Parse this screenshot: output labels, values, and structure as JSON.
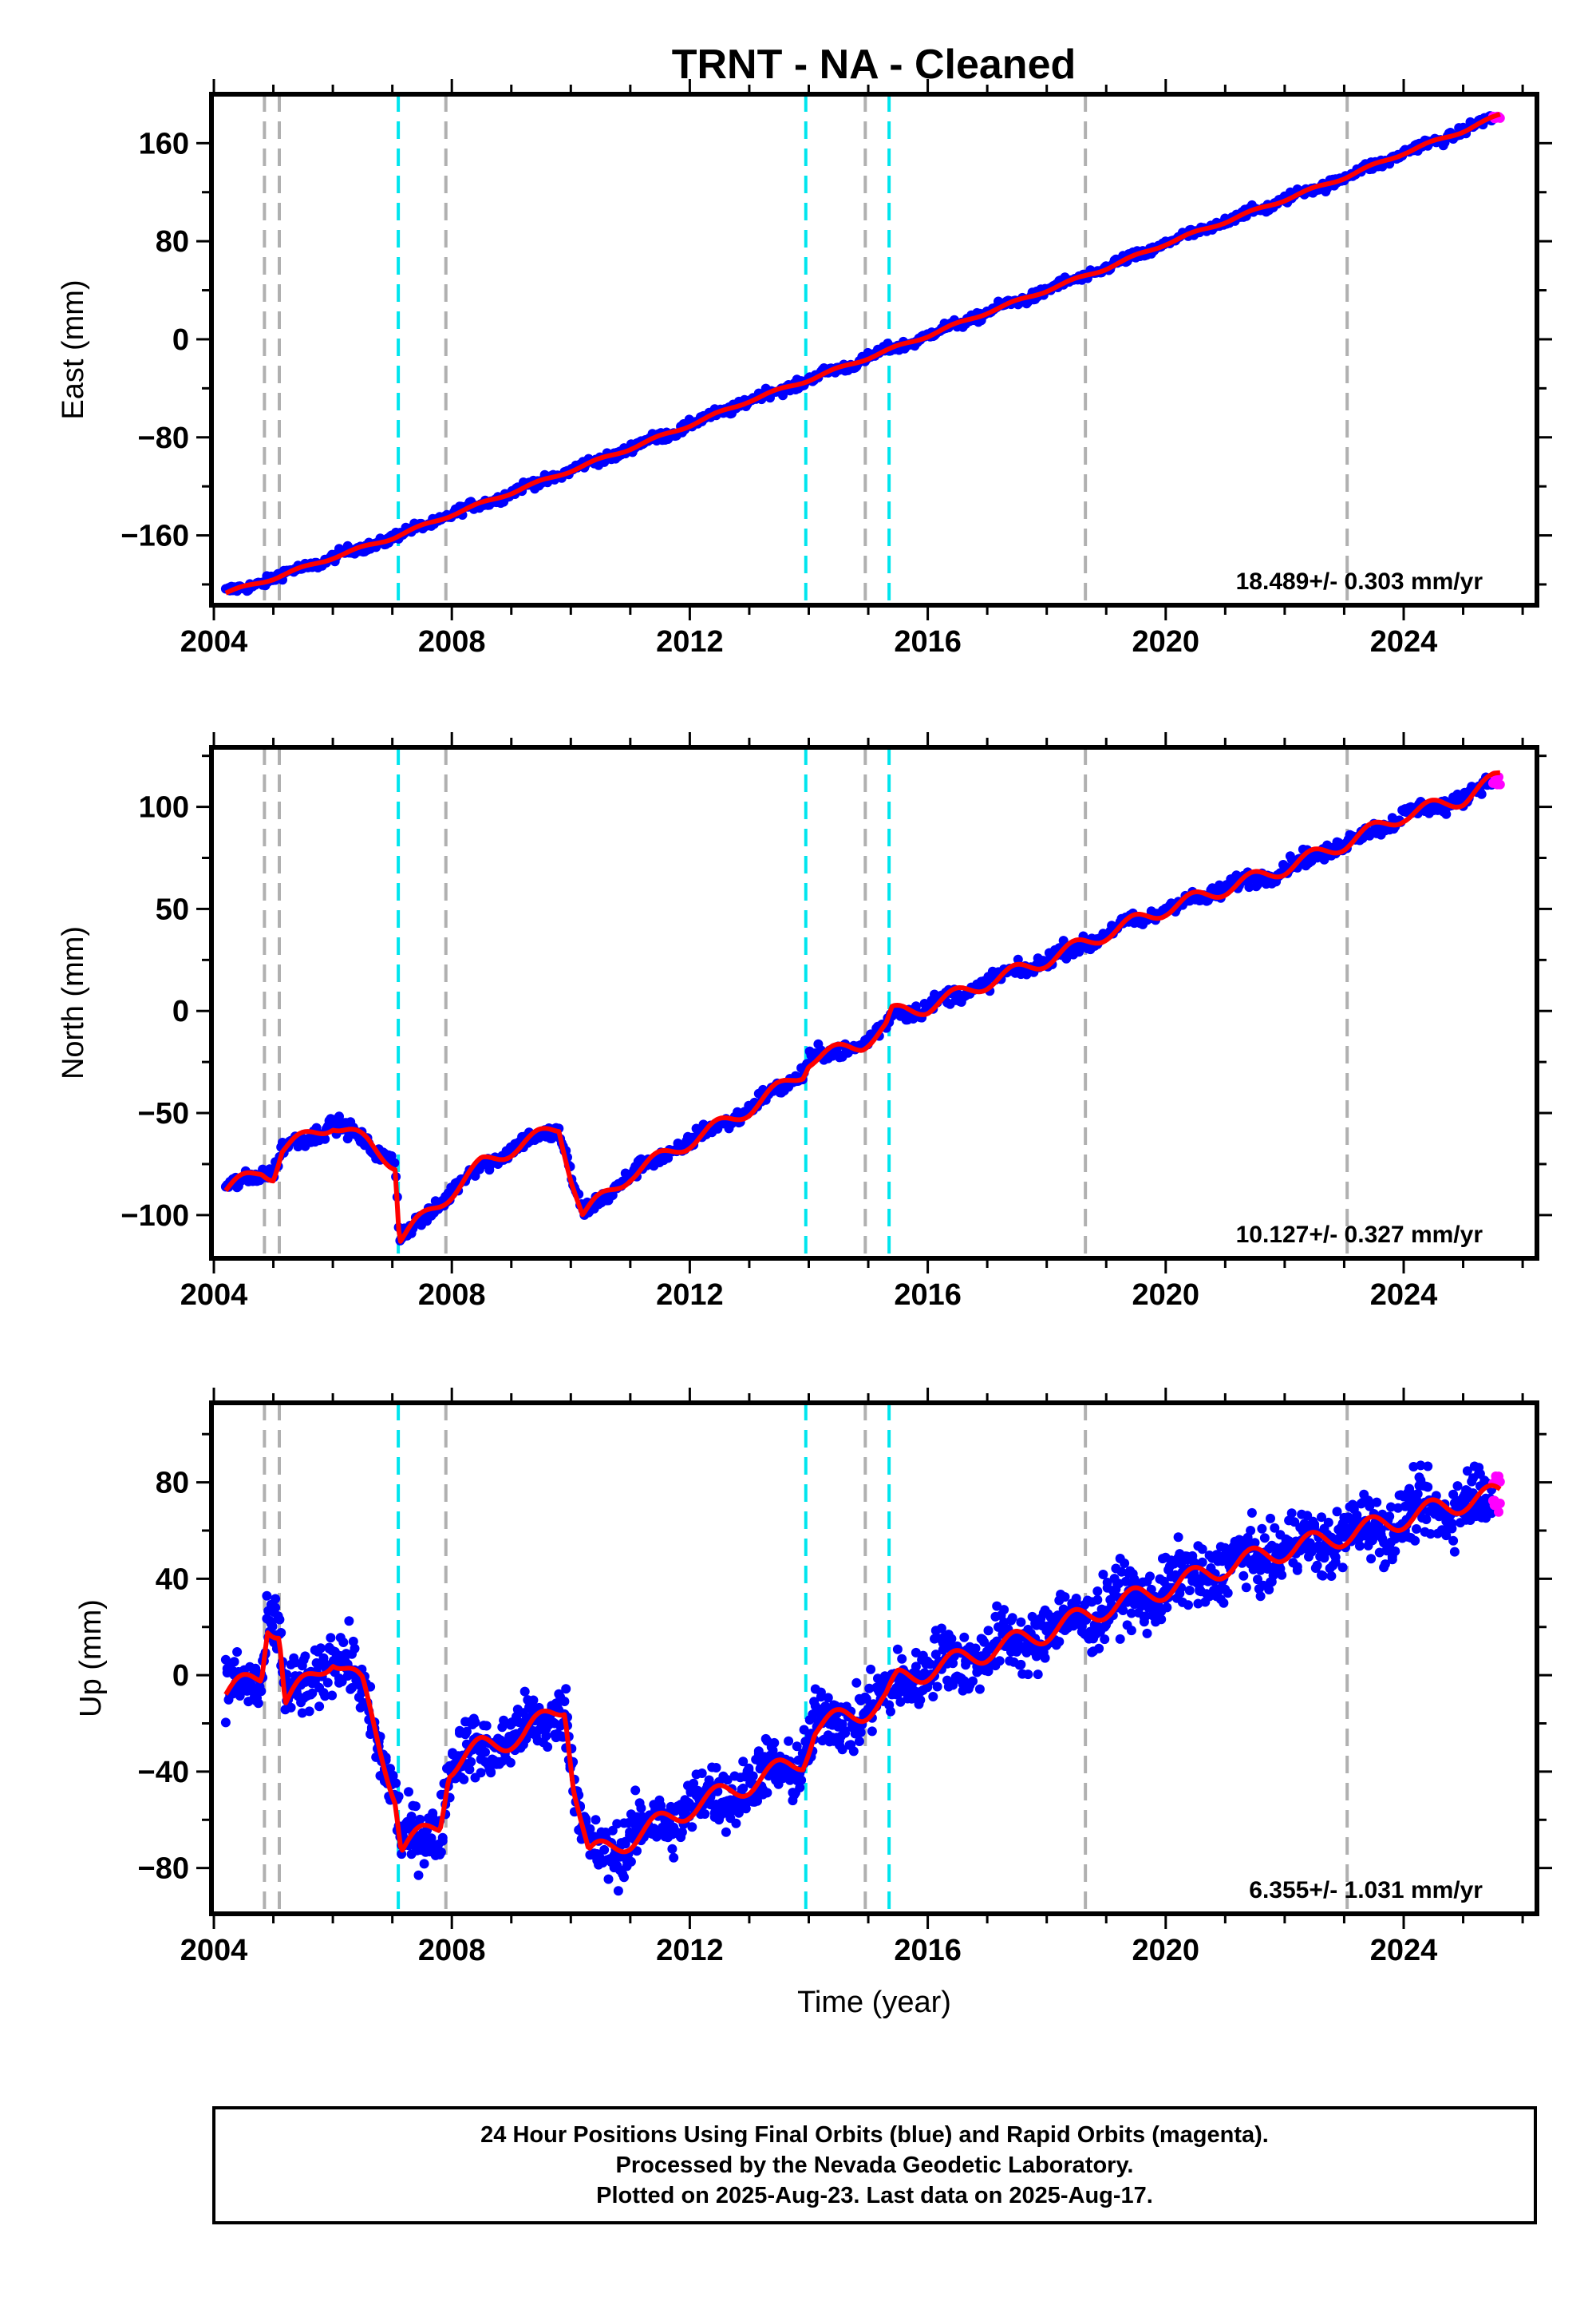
{
  "chart_data": {
    "type": "scatter",
    "title": "TRNT  - NA - Cleaned",
    "xlabel": "Time (year)",
    "xlim": [
      2004.0,
      2026.2
    ],
    "xticks": [
      2004,
      2008,
      2012,
      2016,
      2020,
      2024
    ],
    "grid": false,
    "colors": {
      "final": "#0000ff",
      "rapid": "#ff00ff",
      "model": "#ff0000",
      "offset_equipment": "#00e5ee",
      "offset_other": "#b0b0b0"
    },
    "offsets_equipment": [
      2007.1,
      2013.95,
      2015.35
    ],
    "offsets_other": [
      2004.85,
      2005.1,
      2007.9,
      2014.95,
      2018.65,
      2023.05
    ],
    "data_start": 2004.2,
    "data_end": 2025.62,
    "rapid_start": 2025.5,
    "panels": [
      {
        "id": "east",
        "ylabel": "East (mm)",
        "ylim": [
          -215,
          198
        ],
        "yticks": [
          -160,
          -80,
          0,
          80,
          160
        ],
        "rate": "18.489+/- 0.303 mm/yr",
        "noise": 2.8,
        "trend": [
          [
            2004.2,
            -207
          ],
          [
            2005,
            -195
          ],
          [
            2006,
            -178
          ],
          [
            2007,
            -162
          ],
          [
            2008,
            -143
          ],
          [
            2009,
            -125
          ],
          [
            2010,
            -107
          ],
          [
            2011,
            -89
          ],
          [
            2012,
            -70
          ],
          [
            2013,
            -50
          ],
          [
            2014,
            -33
          ],
          [
            2015,
            -15
          ],
          [
            2016,
            3
          ],
          [
            2017,
            22
          ],
          [
            2018,
            40
          ],
          [
            2019,
            58
          ],
          [
            2020,
            78
          ],
          [
            2021,
            96
          ],
          [
            2022,
            114
          ],
          [
            2023,
            132
          ],
          [
            2024,
            152
          ],
          [
            2025,
            170
          ],
          [
            2025.62,
            183
          ]
        ]
      },
      {
        "id": "north",
        "ylabel": "North (mm)",
        "ylim": [
          -120,
          128
        ],
        "yticks": [
          -100,
          -50,
          0,
          50,
          100
        ],
        "rate": "10.127+/- 0.327 mm/yr",
        "noise": 2.8,
        "trend": [
          [
            2004.2,
            -88
          ],
          [
            2004.8,
            -78
          ],
          [
            2005.0,
            -80
          ],
          [
            2005.15,
            -68
          ],
          [
            2006.0,
            -55
          ],
          [
            2006.6,
            -65
          ],
          [
            2007.05,
            -75
          ],
          [
            2007.12,
            -112
          ],
          [
            2007.8,
            -94
          ],
          [
            2008.5,
            -75
          ],
          [
            2009.2,
            -65
          ],
          [
            2009.8,
            -57
          ],
          [
            2010.0,
            -80
          ],
          [
            2010.2,
            -100
          ],
          [
            2011,
            -80
          ],
          [
            2012,
            -64
          ],
          [
            2013,
            -48
          ],
          [
            2013.9,
            -30
          ],
          [
            2014,
            -24
          ],
          [
            2014.9,
            -16
          ],
          [
            2015.3,
            -8
          ],
          [
            2015.4,
            -1
          ],
          [
            2016,
            2
          ],
          [
            2017,
            14
          ],
          [
            2018,
            25
          ],
          [
            2018.7,
            34
          ],
          [
            2019,
            38
          ],
          [
            2020,
            50
          ],
          [
            2021,
            60
          ],
          [
            2022,
            70
          ],
          [
            2023,
            82
          ],
          [
            2024,
            96
          ],
          [
            2025,
            104
          ],
          [
            2025.62,
            115
          ]
        ]
      },
      {
        "id": "up",
        "ylabel": "Up (mm)",
        "ylim": [
          -98,
          112
        ],
        "yticks": [
          -80,
          -40,
          0,
          40,
          80
        ],
        "rate": "6.355+/- 1.031 mm/yr",
        "noise": 9,
        "trend": [
          [
            2004.2,
            -8
          ],
          [
            2004.8,
            0
          ],
          [
            2004.9,
            22
          ],
          [
            2005.1,
            18
          ],
          [
            2005.2,
            -12
          ],
          [
            2006,
            8
          ],
          [
            2006.5,
            -5
          ],
          [
            2006.9,
            -38
          ],
          [
            2007.05,
            -50
          ],
          [
            2007.15,
            -72
          ],
          [
            2007.8,
            -62
          ],
          [
            2007.95,
            -38
          ],
          [
            2008.5,
            -30
          ],
          [
            2009.2,
            -25
          ],
          [
            2009.9,
            -12
          ],
          [
            2010.05,
            -45
          ],
          [
            2010.3,
            -75
          ],
          [
            2011,
            -68
          ],
          [
            2012,
            -55
          ],
          [
            2013,
            -45
          ],
          [
            2013.9,
            -35
          ],
          [
            2014.1,
            -22
          ],
          [
            2014.9,
            -15
          ],
          [
            2015.3,
            -10
          ],
          [
            2015.5,
            -2
          ],
          [
            2016,
            2
          ],
          [
            2017,
            10
          ],
          [
            2018,
            18
          ],
          [
            2019,
            28
          ],
          [
            2020,
            36
          ],
          [
            2021,
            45
          ],
          [
            2022,
            52
          ],
          [
            2023,
            58
          ],
          [
            2024,
            65
          ],
          [
            2025,
            72
          ],
          [
            2025.62,
            75
          ]
        ]
      }
    ]
  },
  "footer": {
    "line1": "24 Hour Positions Using Final Orbits (blue) and Rapid Orbits (magenta).",
    "line2": "Processed by the Nevada Geodetic Laboratory.",
    "line3": "Plotted on 2025-Aug-23. Last data on 2025-Aug-17."
  }
}
